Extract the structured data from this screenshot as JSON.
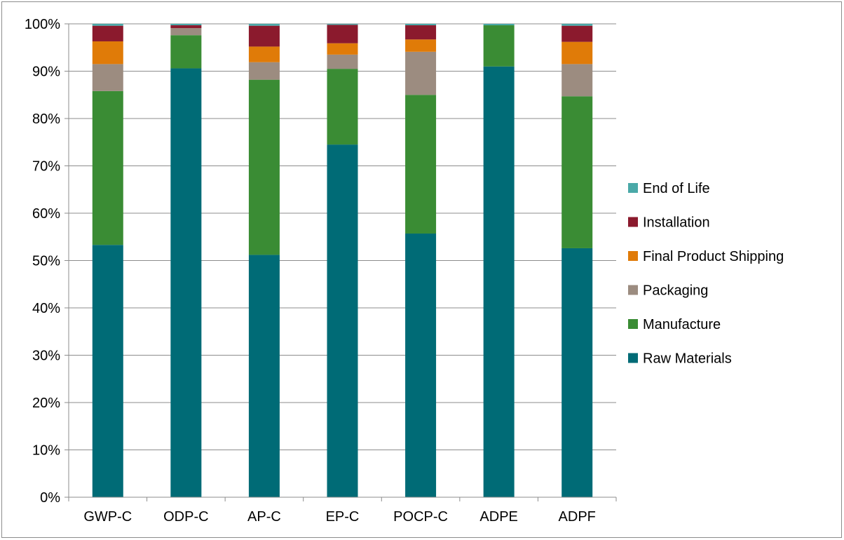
{
  "chart_data": {
    "type": "bar",
    "stacked": true,
    "title": "",
    "xlabel": "",
    "ylabel": "",
    "ylim": [
      0,
      100
    ],
    "y_ticks": [
      "0%",
      "10%",
      "20%",
      "30%",
      "40%",
      "50%",
      "60%",
      "70%",
      "80%",
      "90%",
      "100%"
    ],
    "grid": true,
    "legend_position": "right",
    "categories": [
      "GWP-C",
      "ODP-C",
      "AP-C",
      "EP-C",
      "POCP-C",
      "ADPE",
      "ADPF"
    ],
    "series": [
      {
        "name": "Raw Materials",
        "color": "#006b76",
        "values": [
          53.3,
          90.6,
          51.2,
          74.5,
          55.7,
          91.0,
          52.6
        ]
      },
      {
        "name": "Manufacture",
        "color": "#3a8c34",
        "values": [
          32.5,
          7.0,
          37.0,
          16.0,
          29.3,
          8.7,
          32.1
        ]
      },
      {
        "name": "Packaging",
        "color": "#9c8c80",
        "values": [
          5.7,
          1.5,
          3.7,
          3.0,
          9.1,
          0.0,
          6.8
        ]
      },
      {
        "name": "Final Product Shipping",
        "color": "#e07b08",
        "values": [
          4.8,
          0.0,
          3.3,
          2.4,
          2.6,
          0.0,
          4.7
        ]
      },
      {
        "name": "Installation",
        "color": "#8b1a2d",
        "values": [
          3.3,
          0.6,
          4.4,
          3.9,
          3.0,
          0.0,
          3.4
        ]
      },
      {
        "name": "End of Life",
        "color": "#4aa9a8",
        "values": [
          0.4,
          0.3,
          0.4,
          0.2,
          0.3,
          0.3,
          0.4
        ]
      }
    ]
  }
}
